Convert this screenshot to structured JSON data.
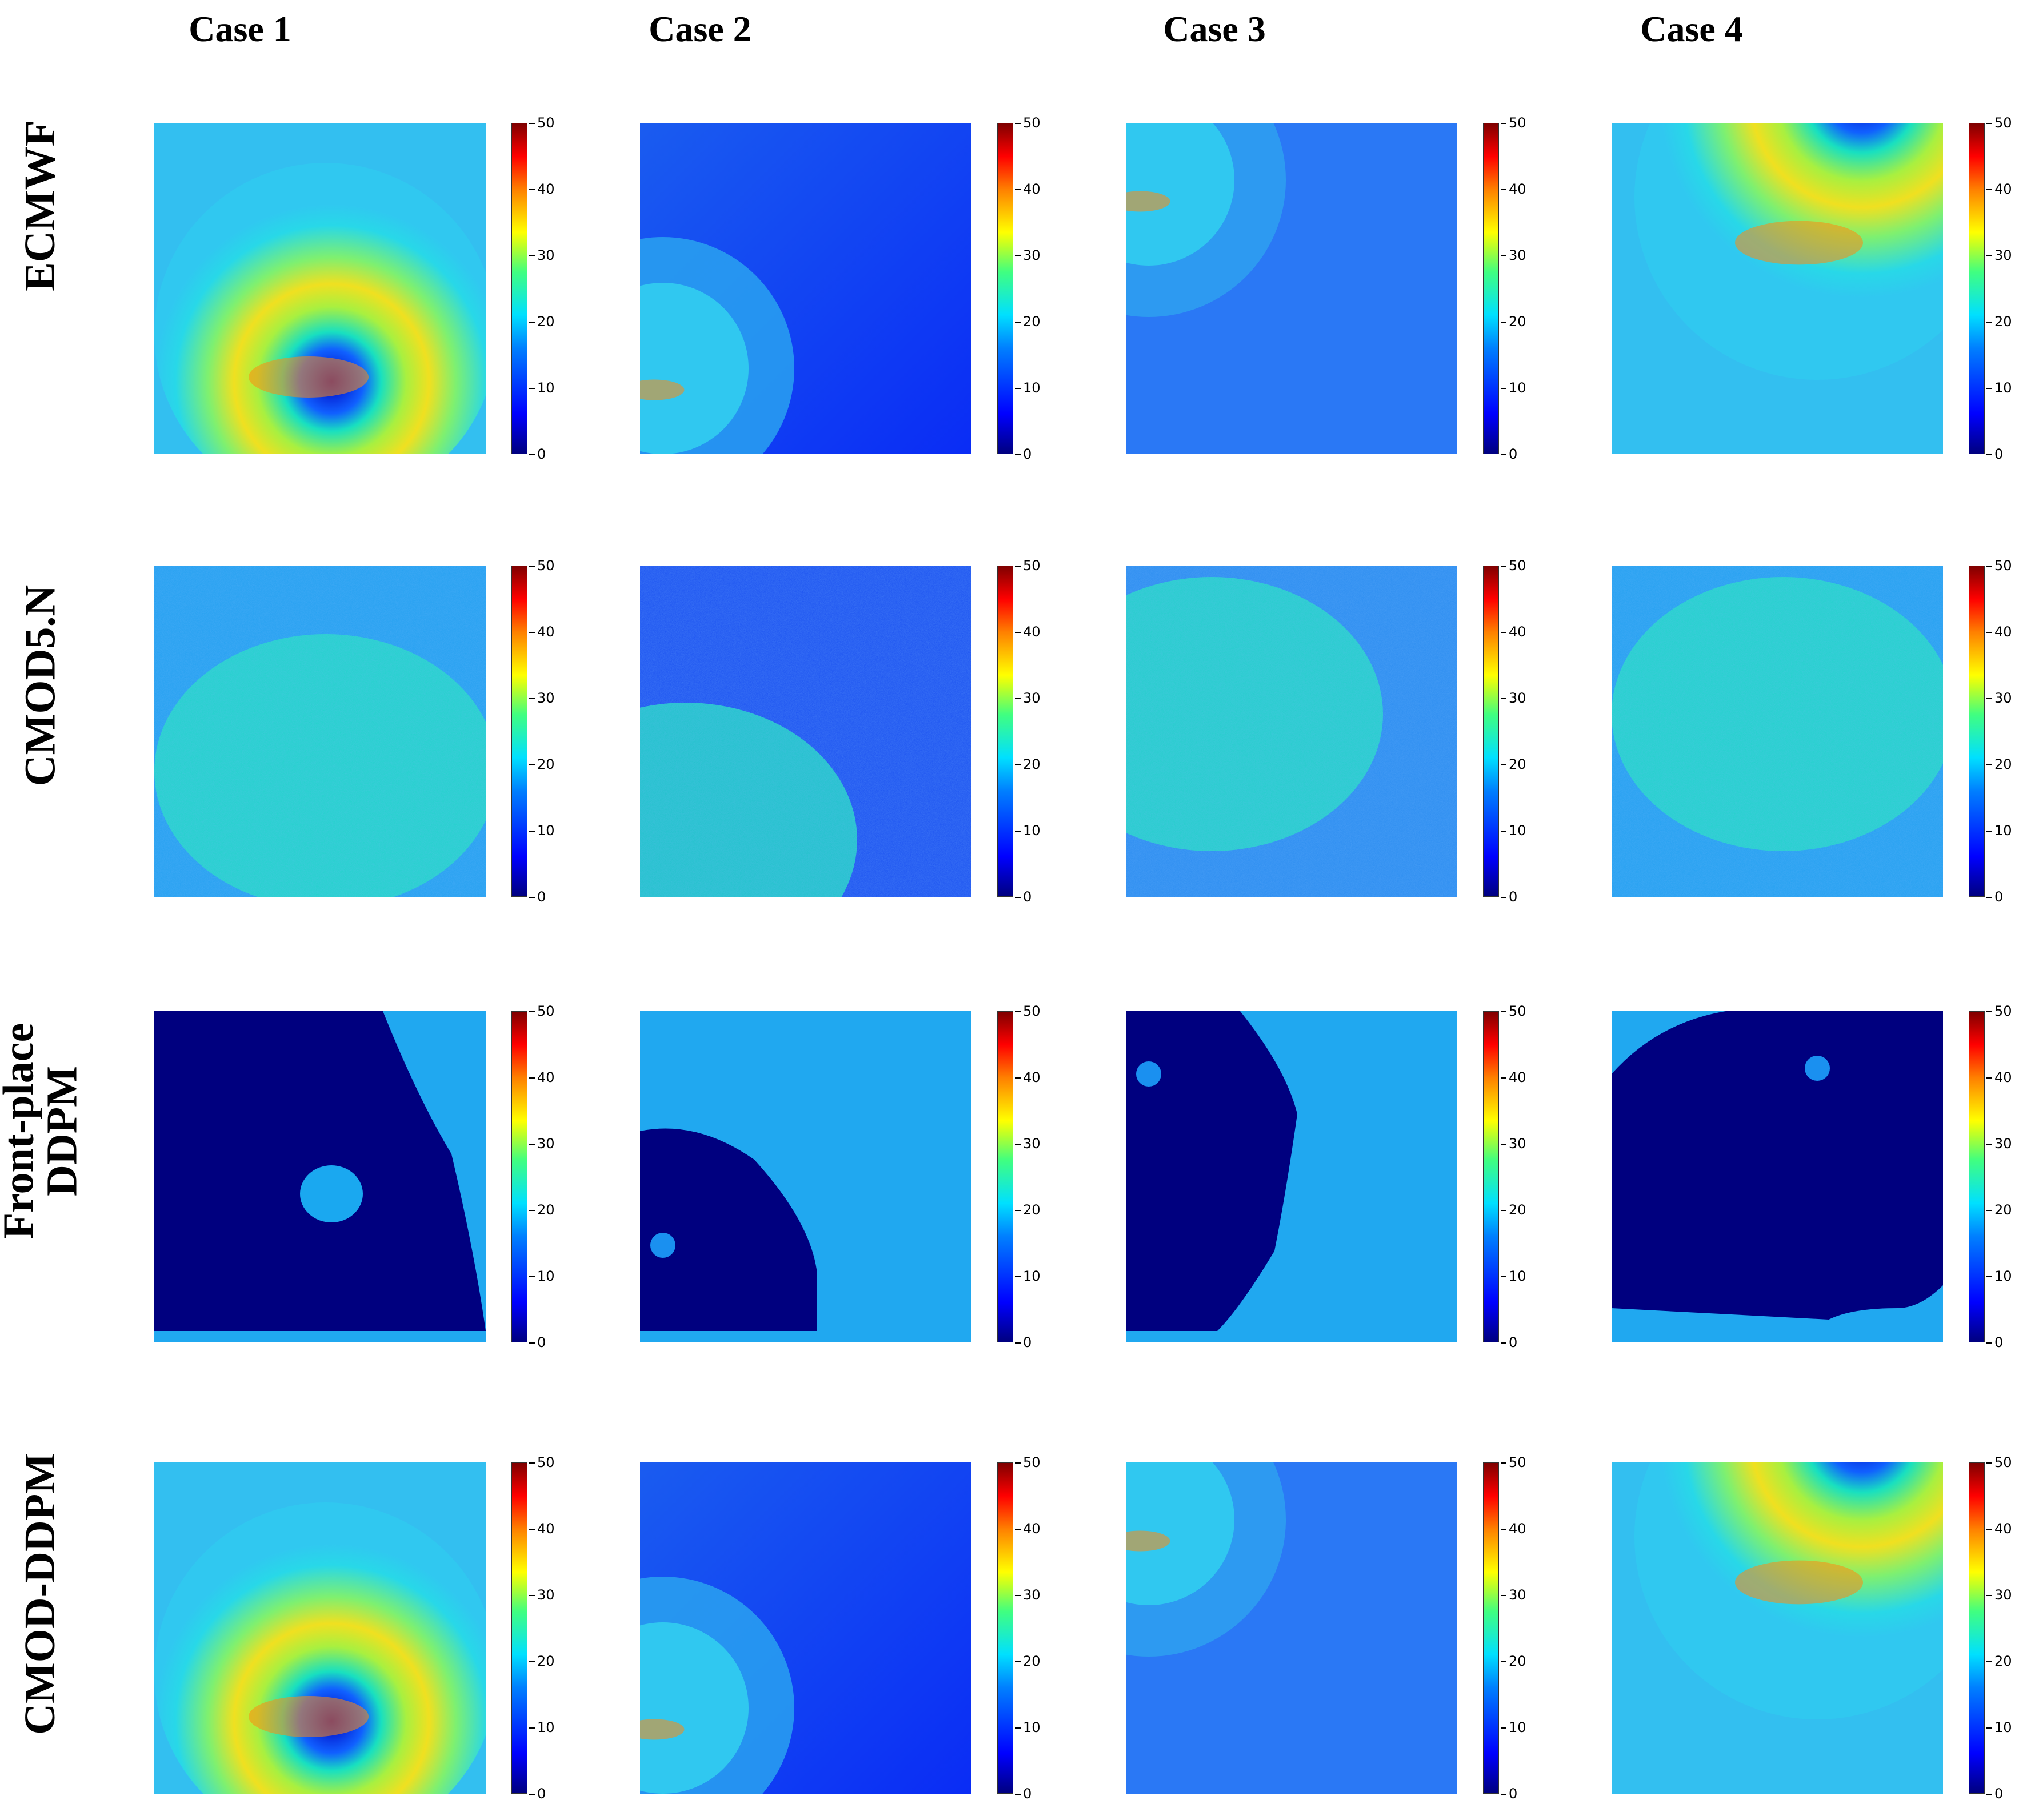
{
  "columns": [
    "Case 1",
    "Case 2",
    "Case 3",
    "Case 4"
  ],
  "rows": [
    {
      "label_lines": [
        "ECMWF"
      ],
      "style": "smooth"
    },
    {
      "label_lines": [
        "CMOD5.N"
      ],
      "style": "noisy"
    },
    {
      "label_lines": [
        "Front-place",
        "DDPM"
      ],
      "style": "front"
    },
    {
      "label_lines": [
        "CMOD-DDPM"
      ],
      "style": "smooth"
    }
  ],
  "colorbar": {
    "min": 0,
    "max": 50,
    "ticks": [
      "0",
      "10",
      "20",
      "30",
      "40",
      "50"
    ],
    "colormap": "jet"
  },
  "colors": {
    "dark_navy": "#00007f",
    "blue": "#1a4cff",
    "cyan": "#17d1e0",
    "yellow": "#f3ea22",
    "red": "#ff2000"
  }
}
